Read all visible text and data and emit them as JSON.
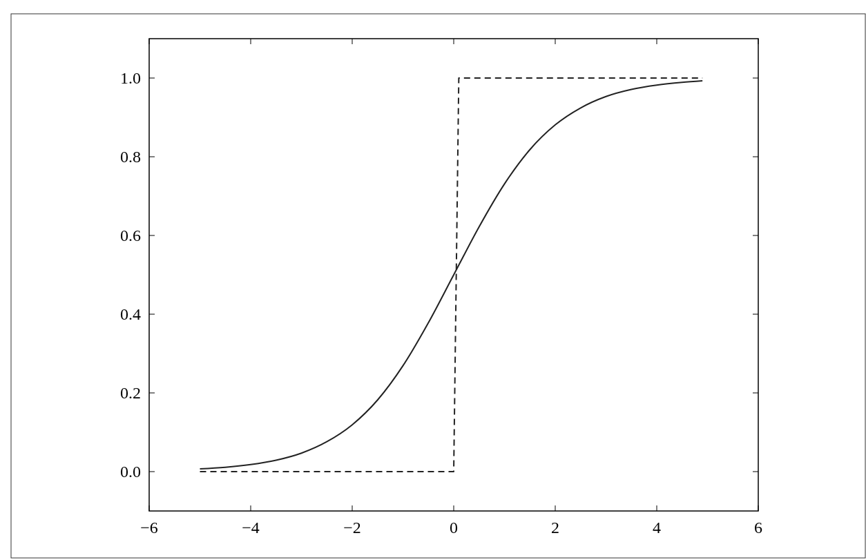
{
  "chart_data": {
    "type": "line",
    "xlim": [
      -6,
      6
    ],
    "ylim": [
      -0.1,
      1.1
    ],
    "xticks": [
      {
        "value": -6,
        "label": "−6"
      },
      {
        "value": -4,
        "label": "−4"
      },
      {
        "value": -2,
        "label": "−2"
      },
      0,
      2,
      4,
      6
    ],
    "yticks": [
      {
        "value": 0,
        "label": "0.0"
      },
      {
        "value": 0.2,
        "label": "0.2"
      },
      {
        "value": 0.4,
        "label": "0.4"
      },
      {
        "value": 0.6,
        "label": "0.6"
      },
      {
        "value": 0.8,
        "label": "0.8"
      },
      {
        "value": 1,
        "label": "1.0"
      }
    ],
    "marker": "none",
    "series": [
      {
        "color": "#222222",
        "line_style": "solid",
        "x": [
          -5,
          -4.5,
          -4,
          -3.5,
          -3,
          -2.5,
          -2,
          -1.5,
          -1,
          -0.5,
          0,
          0.5,
          1,
          1.5,
          2,
          2.5,
          3,
          3.5,
          4,
          4.5,
          4.9
        ],
        "values": [
          0.007,
          0.011,
          0.018,
          0.029,
          0.047,
          0.076,
          0.119,
          0.182,
          0.269,
          0.378,
          0.5,
          0.622,
          0.731,
          0.818,
          0.881,
          0.924,
          0.953,
          0.971,
          0.982,
          0.989,
          0.993
        ]
      },
      {
        "color": "#222222",
        "line_style": "dashed",
        "x": [
          -5,
          0,
          0.1,
          4.9
        ],
        "values": [
          0,
          0,
          1,
          1
        ]
      }
    ]
  }
}
